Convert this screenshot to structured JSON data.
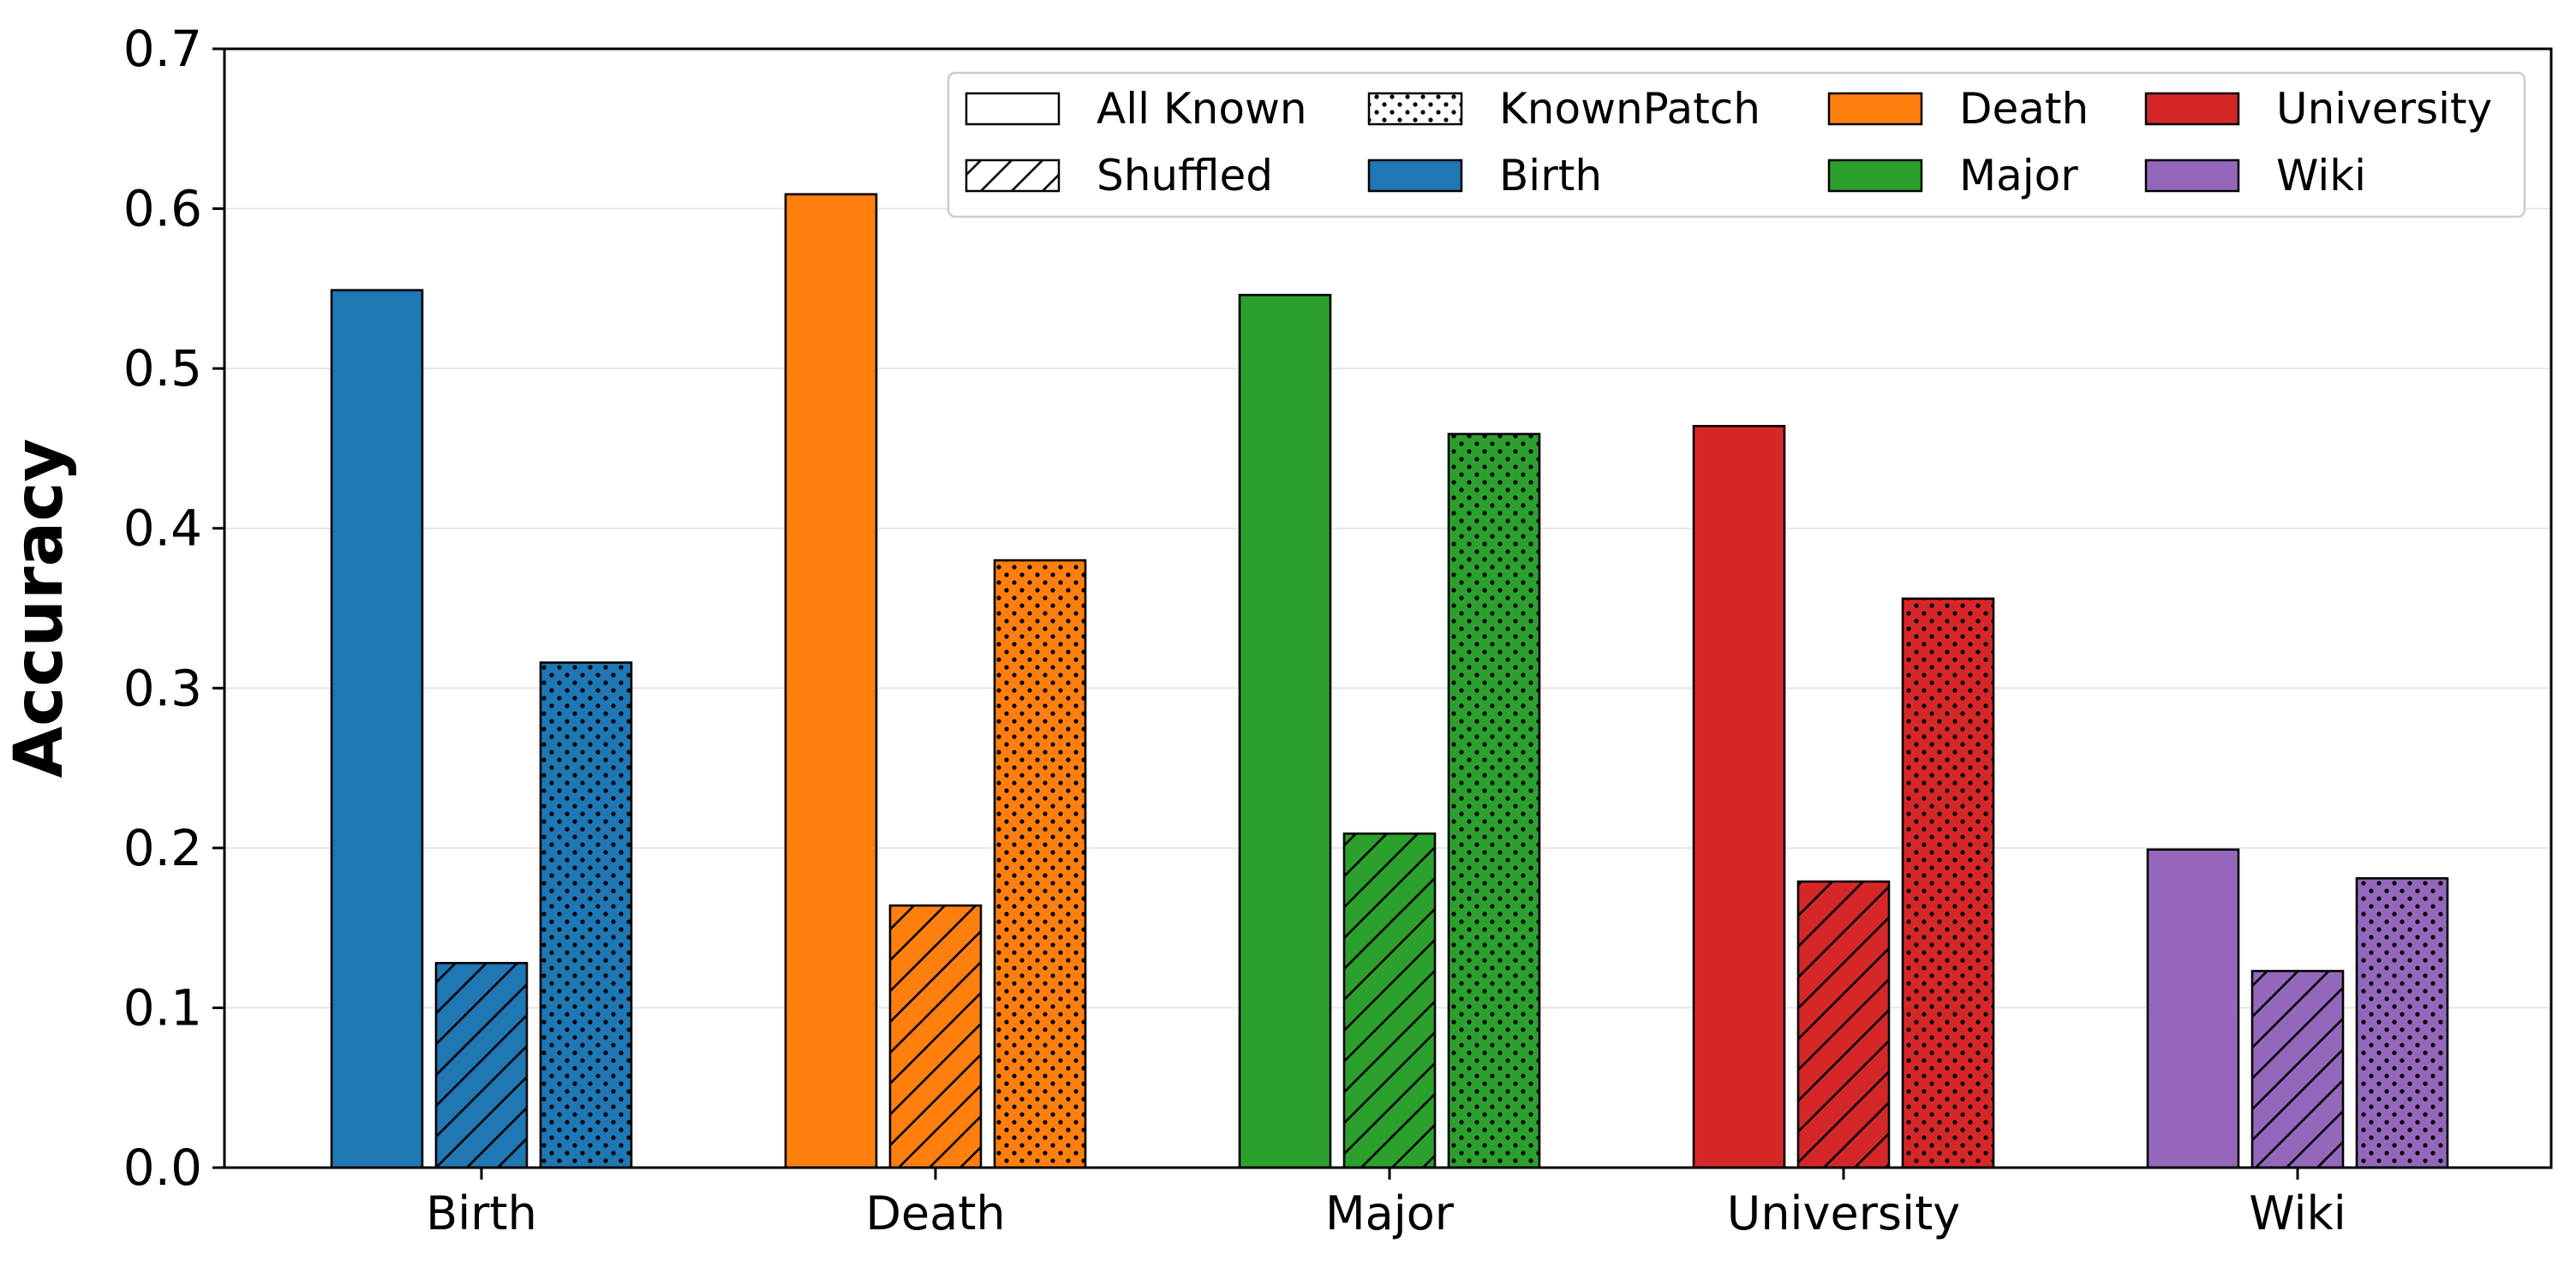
{
  "chart_data": {
    "type": "bar",
    "title": "",
    "xlabel": "",
    "ylabel": "Accuracy",
    "ylim": [
      0,
      0.7
    ],
    "yticks": [
      "0.0",
      "0.1",
      "0.2",
      "0.3",
      "0.4",
      "0.5",
      "0.6",
      "0.7"
    ],
    "grid": "horizontal",
    "categories": [
      "Birth",
      "Death",
      "Major",
      "University",
      "Wiki"
    ],
    "category_colors": [
      "#1f77b4",
      "#ff7f0e",
      "#2ca02c",
      "#d62728",
      "#9467bd"
    ],
    "series": [
      {
        "name": "All Known",
        "pattern": "solid",
        "values": [
          0.549,
          0.609,
          0.546,
          0.464,
          0.199
        ]
      },
      {
        "name": "Shuffled",
        "pattern": "hatch",
        "values": [
          0.128,
          0.164,
          0.209,
          0.179,
          0.123
        ]
      },
      {
        "name": "KnownPatch",
        "pattern": "dots",
        "values": [
          0.316,
          0.38,
          0.459,
          0.356,
          0.181
        ]
      }
    ],
    "legend": {
      "position": "top-right",
      "entries": [
        {
          "label": "All Known",
          "kind": "pattern",
          "pattern": "solid"
        },
        {
          "label": "Shuffled",
          "kind": "pattern",
          "pattern": "hatch"
        },
        {
          "label": "KnownPatch",
          "kind": "pattern",
          "pattern": "dots"
        },
        {
          "label": "Birth",
          "kind": "color",
          "color": "#1f77b4"
        },
        {
          "label": "Death",
          "kind": "color",
          "color": "#ff7f0e"
        },
        {
          "label": "Major",
          "kind": "color",
          "color": "#2ca02c"
        },
        {
          "label": "University",
          "kind": "color",
          "color": "#d62728"
        },
        {
          "label": "Wiki",
          "kind": "color",
          "color": "#9467bd"
        }
      ]
    }
  }
}
